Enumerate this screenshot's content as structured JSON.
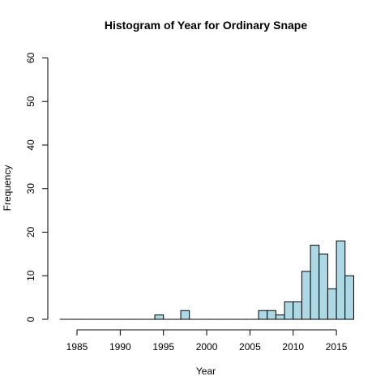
{
  "chart_data": {
    "type": "bar",
    "title": "Histogram of Year for Ordinary Snape",
    "xlabel": "Year",
    "ylabel": "Frequency",
    "xlim": [
      1982,
      2017
    ],
    "ylim": [
      0,
      60
    ],
    "x_ticks": [
      1985,
      1990,
      1995,
      2000,
      2005,
      2010,
      2015
    ],
    "y_ticks": [
      0,
      10,
      20,
      30,
      40,
      50,
      60
    ],
    "bin_width": 1,
    "bins": [
      {
        "start": 1983,
        "count": 0
      },
      {
        "start": 1984,
        "count": 0
      },
      {
        "start": 1985,
        "count": 0
      },
      {
        "start": 1986,
        "count": 0
      },
      {
        "start": 1987,
        "count": 0
      },
      {
        "start": 1988,
        "count": 0
      },
      {
        "start": 1989,
        "count": 0
      },
      {
        "start": 1990,
        "count": 0
      },
      {
        "start": 1991,
        "count": 0
      },
      {
        "start": 1992,
        "count": 0
      },
      {
        "start": 1993,
        "count": 0
      },
      {
        "start": 1994,
        "count": 1
      },
      {
        "start": 1995,
        "count": 0
      },
      {
        "start": 1996,
        "count": 0
      },
      {
        "start": 1997,
        "count": 2
      },
      {
        "start": 1998,
        "count": 0
      },
      {
        "start": 1999,
        "count": 0
      },
      {
        "start": 2000,
        "count": 0
      },
      {
        "start": 2001,
        "count": 0
      },
      {
        "start": 2002,
        "count": 0
      },
      {
        "start": 2003,
        "count": 0
      },
      {
        "start": 2004,
        "count": 0
      },
      {
        "start": 2005,
        "count": 0
      },
      {
        "start": 2006,
        "count": 2
      },
      {
        "start": 2007,
        "count": 2
      },
      {
        "start": 2008,
        "count": 1
      },
      {
        "start": 2009,
        "count": 4
      },
      {
        "start": 2010,
        "count": 4
      },
      {
        "start": 2011,
        "count": 11
      },
      {
        "start": 2012,
        "count": 17
      },
      {
        "start": 2013,
        "count": 15
      },
      {
        "start": 2014,
        "count": 7
      },
      {
        "start": 2015,
        "count": 18
      },
      {
        "start": 2016,
        "count": 10
      }
    ],
    "bar_color": "#add8e6",
    "bar_edge_color": "#000000",
    "grid": false
  }
}
